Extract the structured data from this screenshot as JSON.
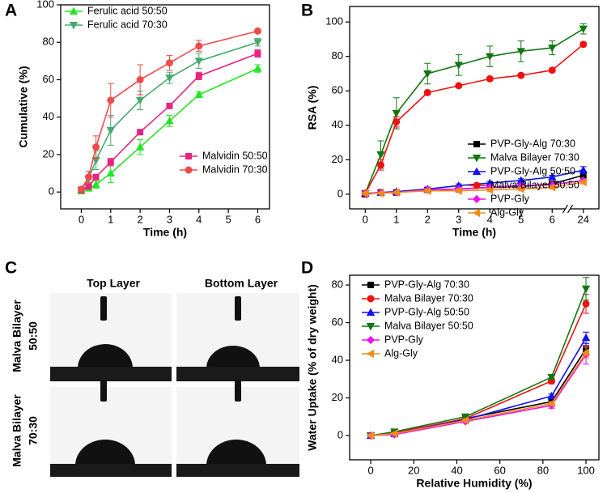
{
  "chart_data": [
    {
      "type": "line",
      "panel_label": "A",
      "x_label": "Time (h)",
      "y_label": "Cumulative (%)",
      "x": [
        0,
        0.25,
        0.5,
        1,
        2,
        3,
        4,
        6
      ],
      "xlim": [
        -0.7,
        6.4
      ],
      "xticks": [
        0,
        1,
        2,
        3,
        4,
        5,
        6
      ],
      "ylim": [
        -9,
        100
      ],
      "yticks": [
        0,
        20,
        40,
        60,
        80,
        100
      ],
      "series": [
        {
          "name": "Ferulic acid 50:50",
          "color": "#22e622",
          "marker": "triangle-up",
          "legend_loc": "upper left",
          "values": [
            0.5,
            2,
            4,
            10,
            24,
            38,
            52,
            66
          ],
          "errors": [
            1,
            1,
            2,
            5,
            4,
            3,
            1.5,
            2
          ]
        },
        {
          "name": "Ferulic acid 70:30",
          "color": "#44aa6e",
          "marker": "triangle-down",
          "legend_loc": "upper left",
          "values": [
            1,
            7,
            17,
            33,
            49,
            61,
            70,
            80
          ],
          "errors": [
            1,
            2,
            5,
            8,
            5,
            3,
            4,
            2
          ]
        },
        {
          "name": "Malvidin 50:50",
          "color": "#e8237f",
          "marker": "square",
          "legend_loc": "lower right",
          "values": [
            1,
            3,
            8,
            16,
            32,
            46,
            62,
            74
          ],
          "errors": [
            1,
            1,
            1,
            2,
            1,
            1,
            2,
            2
          ]
        },
        {
          "name": "Malvidin 70:30",
          "color": "#ee4b4b",
          "marker": "circle",
          "legend_loc": "lower right",
          "values": [
            1.5,
            8,
            24,
            49,
            60,
            69,
            78,
            86
          ],
          "errors": [
            1,
            3,
            6,
            9,
            8,
            4,
            3,
            1
          ]
        }
      ]
    },
    {
      "type": "line",
      "panel_label": "B",
      "x_label": "Time (h)",
      "y_label": "RSA (%)",
      "x": [
        0,
        0.5,
        1,
        2,
        3,
        4,
        5,
        6,
        24
      ],
      "xlim": [
        -0.5,
        24.5
      ],
      "xticks": [
        0,
        1,
        2,
        3,
        4,
        5,
        6,
        24
      ],
      "x_break": [
        6,
        24
      ],
      "ylim": [
        -8.5,
        109
      ],
      "yticks": [
        0,
        20,
        40,
        60,
        80,
        100
      ],
      "legend": "center right",
      "series": [
        {
          "name": "PVP-Gly-Alg 70:30",
          "color": "#000000",
          "marker": "square",
          "values": [
            0,
            1,
            1,
            2.5,
            3,
            4,
            4.5,
            6,
            11
          ],
          "errors": [
            0.5,
            0.5,
            0.5,
            1,
            1,
            1,
            1,
            1,
            2
          ]
        },
        {
          "name": "Malva Bilayer 70:30",
          "color": "#117711",
          "marker": "triangle-down",
          "values": [
            0.5,
            23,
            47,
            70,
            75,
            80,
            83,
            85,
            96
          ],
          "errors": [
            0.5,
            8,
            9,
            6,
            6,
            6,
            6,
            4,
            3
          ]
        },
        {
          "name": "PVP-Gly-Alg 50:50",
          "color": "#1111ee",
          "marker": "triangle-up",
          "values": [
            0.5,
            1,
            1.5,
            3,
            5,
            6.5,
            8,
            10,
            14
          ],
          "errors": [
            0.5,
            0.5,
            0.5,
            1,
            1,
            1,
            1,
            1,
            2
          ]
        },
        {
          "name": "Malva Bilayer 50:50",
          "color": "#ee1111",
          "marker": "circle",
          "values": [
            0.5,
            17,
            42,
            59,
            63,
            67,
            69,
            72,
            87
          ],
          "errors": [
            0.5,
            3,
            3,
            1,
            1,
            1,
            1,
            1,
            1
          ]
        },
        {
          "name": "PVP-Gly",
          "color": "#ee11ee",
          "marker": "diamond",
          "values": [
            0.5,
            1,
            1,
            2.5,
            3,
            4,
            5,
            5.5,
            8
          ],
          "errors": [
            0.5,
            0.5,
            0.5,
            1,
            1,
            1,
            1,
            1,
            1
          ]
        },
        {
          "name": "Alg-Gly",
          "color": "#f08a1a",
          "marker": "triangle-left",
          "values": [
            0.5,
            0.5,
            1,
            2,
            2,
            2.5,
            3,
            4,
            7
          ],
          "errors": [
            0.5,
            0.5,
            0.5,
            1,
            1,
            1,
            1,
            1,
            1
          ]
        }
      ]
    },
    {
      "type": "line",
      "panel_label": "D",
      "x_label": "Relative Humidity (%)",
      "y_label": "Water Uptake (% of dry weight)",
      "x": [
        0,
        11,
        44,
        84,
        100
      ],
      "xlim": [
        -9.8,
        106
      ],
      "xticks": [
        0,
        20,
        40,
        60,
        80,
        100
      ],
      "ylim": [
        -12.9,
        85.2
      ],
      "yticks": [
        0,
        20,
        40,
        60,
        80
      ],
      "legend": "upper left",
      "series": [
        {
          "name": "PVP-Gly-Alg 70:30",
          "color": "#000000",
          "marker": "square",
          "values": [
            0,
            1,
            9,
            18,
            46
          ],
          "errors": [
            0.5,
            1,
            1,
            1,
            3
          ]
        },
        {
          "name": "Malva Bilayer 70:30",
          "color": "#ee1111",
          "marker": "circle",
          "values": [
            0,
            1.5,
            9,
            29,
            70
          ],
          "errors": [
            0.5,
            0.5,
            1,
            1.5,
            5
          ]
        },
        {
          "name": "PVP-Gly-Alg 50:50",
          "color": "#1111ee",
          "marker": "triangle-up",
          "values": [
            0,
            1,
            8.5,
            21,
            52
          ],
          "errors": [
            0.5,
            1,
            1,
            1,
            3
          ]
        },
        {
          "name": "Malva Bilayer 50:50",
          "color": "#117711",
          "marker": "triangle-down",
          "values": [
            0,
            2,
            10,
            31,
            78
          ],
          "errors": [
            0.5,
            0.5,
            1,
            1,
            6
          ]
        },
        {
          "name": "PVP-Gly",
          "color": "#ee11ee",
          "marker": "diamond",
          "values": [
            0,
            0.5,
            7.5,
            16,
            43
          ],
          "errors": [
            0.5,
            0.5,
            1,
            1.5,
            5
          ]
        },
        {
          "name": "Alg-Gly",
          "color": "#f08a1a",
          "marker": "triangle-left",
          "values": [
            0,
            1,
            8,
            17,
            44
          ],
          "errors": [
            0.5,
            0.5,
            1,
            1,
            3
          ]
        }
      ]
    }
  ],
  "image_panel": {
    "panel_label": "C",
    "columns": [
      "Top Layer",
      "Bottom Layer"
    ],
    "rows": [
      [
        "Malva Bilayer",
        "50:50"
      ],
      [
        "Malva Bilayer",
        "70:30"
      ]
    ]
  }
}
